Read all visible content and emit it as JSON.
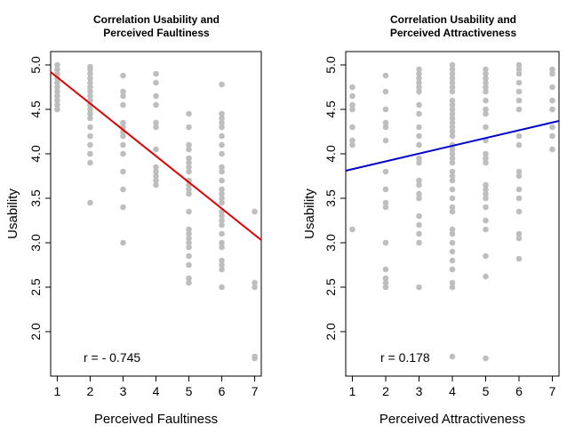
{
  "chart_data": [
    {
      "type": "scatter",
      "title_lines": [
        "Correlation Usability and",
        "Perceived Faultiness"
      ],
      "xlabel": "Perceived Faultiness",
      "ylabel": "Usability",
      "xlim": [
        0.8,
        7.2
      ],
      "ylim": [
        1.5,
        5.15
      ],
      "x_ticks": [
        "1",
        "2",
        "3",
        "4",
        "5",
        "6",
        "7"
      ],
      "y_ticks": [
        "2.0",
        "2.5",
        "3.0",
        "3.5",
        "4.0",
        "4.5",
        "5.0"
      ],
      "annotation": "r = - 0.745",
      "regression": {
        "x1": 0.8,
        "y1": 4.92,
        "x2": 7.2,
        "y2": 3.03,
        "color": "#dd0000"
      },
      "point_color": "#bebebe",
      "points": [
        [
          1,
          5.0
        ],
        [
          1,
          4.95
        ],
        [
          1,
          4.9
        ],
        [
          1,
          4.85
        ],
        [
          1,
          4.8
        ],
        [
          1,
          4.75
        ],
        [
          1,
          4.7
        ],
        [
          1,
          4.65
        ],
        [
          1,
          4.6
        ],
        [
          1,
          4.55
        ],
        [
          1,
          4.5
        ],
        [
          2,
          4.98
        ],
        [
          2,
          4.95
        ],
        [
          2,
          4.9
        ],
        [
          2,
          4.85
        ],
        [
          2,
          4.8
        ],
        [
          2,
          4.75
        ],
        [
          2,
          4.7
        ],
        [
          2,
          4.65
        ],
        [
          2,
          4.6
        ],
        [
          2,
          4.55
        ],
        [
          2,
          4.5
        ],
        [
          2,
          4.45
        ],
        [
          2,
          4.4
        ],
        [
          2,
          4.3
        ],
        [
          2,
          4.2
        ],
        [
          2,
          4.1
        ],
        [
          2,
          4.0
        ],
        [
          2,
          3.9
        ],
        [
          2,
          3.45
        ],
        [
          3,
          4.88
        ],
        [
          3,
          4.7
        ],
        [
          3,
          4.65
        ],
        [
          3,
          4.55
        ],
        [
          3,
          4.35
        ],
        [
          3,
          4.3
        ],
        [
          3,
          4.25
        ],
        [
          3,
          4.2
        ],
        [
          3,
          4.1
        ],
        [
          3,
          4.0
        ],
        [
          3,
          3.8
        ],
        [
          3,
          3.6
        ],
        [
          3,
          3.4
        ],
        [
          3,
          3.0
        ],
        [
          4,
          4.9
        ],
        [
          4,
          4.8
        ],
        [
          4,
          4.65
        ],
        [
          4,
          4.55
        ],
        [
          4,
          4.35
        ],
        [
          4,
          4.3
        ],
        [
          4,
          4.05
        ],
        [
          4,
          3.85
        ],
        [
          4,
          3.8
        ],
        [
          4,
          3.75
        ],
        [
          4,
          3.7
        ],
        [
          4,
          3.65
        ],
        [
          5,
          4.45
        ],
        [
          5,
          4.3
        ],
        [
          5,
          4.1
        ],
        [
          5,
          4.05
        ],
        [
          5,
          3.95
        ],
        [
          5,
          3.9
        ],
        [
          5,
          3.85
        ],
        [
          5,
          3.8
        ],
        [
          5,
          3.7
        ],
        [
          5,
          3.65
        ],
        [
          5,
          3.6
        ],
        [
          5,
          3.55
        ],
        [
          5,
          3.35
        ],
        [
          5,
          3.15
        ],
        [
          5,
          3.1
        ],
        [
          5,
          3.05
        ],
        [
          5,
          3.0
        ],
        [
          5,
          2.95
        ],
        [
          5,
          2.85
        ],
        [
          5,
          2.75
        ],
        [
          5,
          2.6
        ],
        [
          5,
          2.55
        ],
        [
          6,
          4.78
        ],
        [
          6,
          4.45
        ],
        [
          6,
          4.4
        ],
        [
          6,
          4.35
        ],
        [
          6,
          4.3
        ],
        [
          6,
          4.2
        ],
        [
          6,
          4.1
        ],
        [
          6,
          4.0
        ],
        [
          6,
          3.85
        ],
        [
          6,
          3.8
        ],
        [
          6,
          3.7
        ],
        [
          6,
          3.6
        ],
        [
          6,
          3.55
        ],
        [
          6,
          3.5
        ],
        [
          6,
          3.45
        ],
        [
          6,
          3.35
        ],
        [
          6,
          3.3
        ],
        [
          6,
          3.25
        ],
        [
          6,
          3.2
        ],
        [
          6,
          3.1
        ],
        [
          6,
          3.0
        ],
        [
          6,
          2.95
        ],
        [
          6,
          2.8
        ],
        [
          6,
          2.75
        ],
        [
          6,
          2.7
        ],
        [
          6,
          2.5
        ],
        [
          7,
          3.35
        ],
        [
          7,
          2.55
        ],
        [
          7,
          2.5
        ],
        [
          7,
          1.72
        ],
        [
          7,
          1.7
        ]
      ]
    },
    {
      "type": "scatter",
      "title_lines": [
        "Correlation Usability and",
        "Perceived Attractiveness"
      ],
      "xlabel": "Perceived Attractiveness",
      "ylabel": "Usability",
      "xlim": [
        0.8,
        7.2
      ],
      "ylim": [
        1.5,
        5.15
      ],
      "x_ticks": [
        "1",
        "2",
        "3",
        "4",
        "5",
        "6",
        "7"
      ],
      "y_ticks": [
        "2.0",
        "2.5",
        "3.0",
        "3.5",
        "4.0",
        "4.5",
        "5.0"
      ],
      "annotation": "r = 0.178",
      "regression": {
        "x1": 0.8,
        "y1": 3.81,
        "x2": 7.2,
        "y2": 4.37,
        "color": "#0000cc"
      },
      "point_color": "#bebebe",
      "points": [
        [
          1,
          4.75
        ],
        [
          1,
          4.65
        ],
        [
          1,
          4.55
        ],
        [
          1,
          4.5
        ],
        [
          1,
          4.3
        ],
        [
          1,
          4.15
        ],
        [
          1,
          4.1
        ],
        [
          1,
          3.15
        ],
        [
          2,
          4.88
        ],
        [
          2,
          4.7
        ],
        [
          2,
          4.5
        ],
        [
          2,
          4.35
        ],
        [
          2,
          4.3
        ],
        [
          2,
          4.15
        ],
        [
          2,
          3.8
        ],
        [
          2,
          3.6
        ],
        [
          2,
          3.45
        ],
        [
          2,
          3.4
        ],
        [
          2,
          3.0
        ],
        [
          2,
          2.7
        ],
        [
          2,
          2.6
        ],
        [
          2,
          2.55
        ],
        [
          2,
          2.5
        ],
        [
          3,
          4.95
        ],
        [
          3,
          4.9
        ],
        [
          3,
          4.85
        ],
        [
          3,
          4.8
        ],
        [
          3,
          4.75
        ],
        [
          3,
          4.7
        ],
        [
          3,
          4.55
        ],
        [
          3,
          4.45
        ],
        [
          3,
          4.3
        ],
        [
          3,
          4.2
        ],
        [
          3,
          4.1
        ],
        [
          3,
          3.95
        ],
        [
          3,
          3.9
        ],
        [
          3,
          3.7
        ],
        [
          3,
          3.65
        ],
        [
          3,
          3.55
        ],
        [
          3,
          3.5
        ],
        [
          3,
          3.3
        ],
        [
          3,
          3.2
        ],
        [
          3,
          3.1
        ],
        [
          3,
          3.0
        ],
        [
          3,
          2.5
        ],
        [
          4,
          5.0
        ],
        [
          4,
          4.95
        ],
        [
          4,
          4.9
        ],
        [
          4,
          4.85
        ],
        [
          4,
          4.8
        ],
        [
          4,
          4.75
        ],
        [
          4,
          4.7
        ],
        [
          4,
          4.6
        ],
        [
          4,
          4.55
        ],
        [
          4,
          4.5
        ],
        [
          4,
          4.45
        ],
        [
          4,
          4.4
        ],
        [
          4,
          4.35
        ],
        [
          4,
          4.3
        ],
        [
          4,
          4.25
        ],
        [
          4,
          4.2
        ],
        [
          4,
          4.1
        ],
        [
          4,
          4.05
        ],
        [
          4,
          4.0
        ],
        [
          4,
          3.95
        ],
        [
          4,
          3.9
        ],
        [
          4,
          3.8
        ],
        [
          4,
          3.75
        ],
        [
          4,
          3.7
        ],
        [
          4,
          3.6
        ],
        [
          4,
          3.5
        ],
        [
          4,
          3.4
        ],
        [
          4,
          3.35
        ],
        [
          4,
          3.15
        ],
        [
          4,
          3.1
        ],
        [
          4,
          3.0
        ],
        [
          4,
          2.9
        ],
        [
          4,
          2.8
        ],
        [
          4,
          2.7
        ],
        [
          4,
          2.55
        ],
        [
          4,
          2.5
        ],
        [
          4,
          1.72
        ],
        [
          5,
          4.95
        ],
        [
          5,
          4.9
        ],
        [
          5,
          4.85
        ],
        [
          5,
          4.8
        ],
        [
          5,
          4.75
        ],
        [
          5,
          4.7
        ],
        [
          5,
          4.6
        ],
        [
          5,
          4.5
        ],
        [
          5,
          4.45
        ],
        [
          5,
          4.3
        ],
        [
          5,
          4.15
        ],
        [
          5,
          4.0
        ],
        [
          5,
          3.95
        ],
        [
          5,
          3.9
        ],
        [
          5,
          3.65
        ],
        [
          5,
          3.6
        ],
        [
          5,
          3.55
        ],
        [
          5,
          3.5
        ],
        [
          5,
          3.4
        ],
        [
          5,
          3.25
        ],
        [
          5,
          3.15
        ],
        [
          5,
          2.85
        ],
        [
          5,
          2.62
        ],
        [
          5,
          1.7
        ],
        [
          6,
          5.0
        ],
        [
          6,
          4.95
        ],
        [
          6,
          4.9
        ],
        [
          6,
          4.8
        ],
        [
          6,
          4.7
        ],
        [
          6,
          4.6
        ],
        [
          6,
          4.5
        ],
        [
          6,
          4.2
        ],
        [
          6,
          4.1
        ],
        [
          6,
          3.8
        ],
        [
          6,
          3.75
        ],
        [
          6,
          3.6
        ],
        [
          6,
          3.5
        ],
        [
          6,
          3.35
        ],
        [
          6,
          3.1
        ],
        [
          6,
          3.05
        ],
        [
          6,
          2.82
        ],
        [
          7,
          4.95
        ],
        [
          7,
          4.9
        ],
        [
          7,
          4.75
        ],
        [
          7,
          4.6
        ],
        [
          7,
          4.5
        ],
        [
          7,
          4.3
        ],
        [
          7,
          4.2
        ],
        [
          7,
          4.05
        ]
      ]
    }
  ]
}
